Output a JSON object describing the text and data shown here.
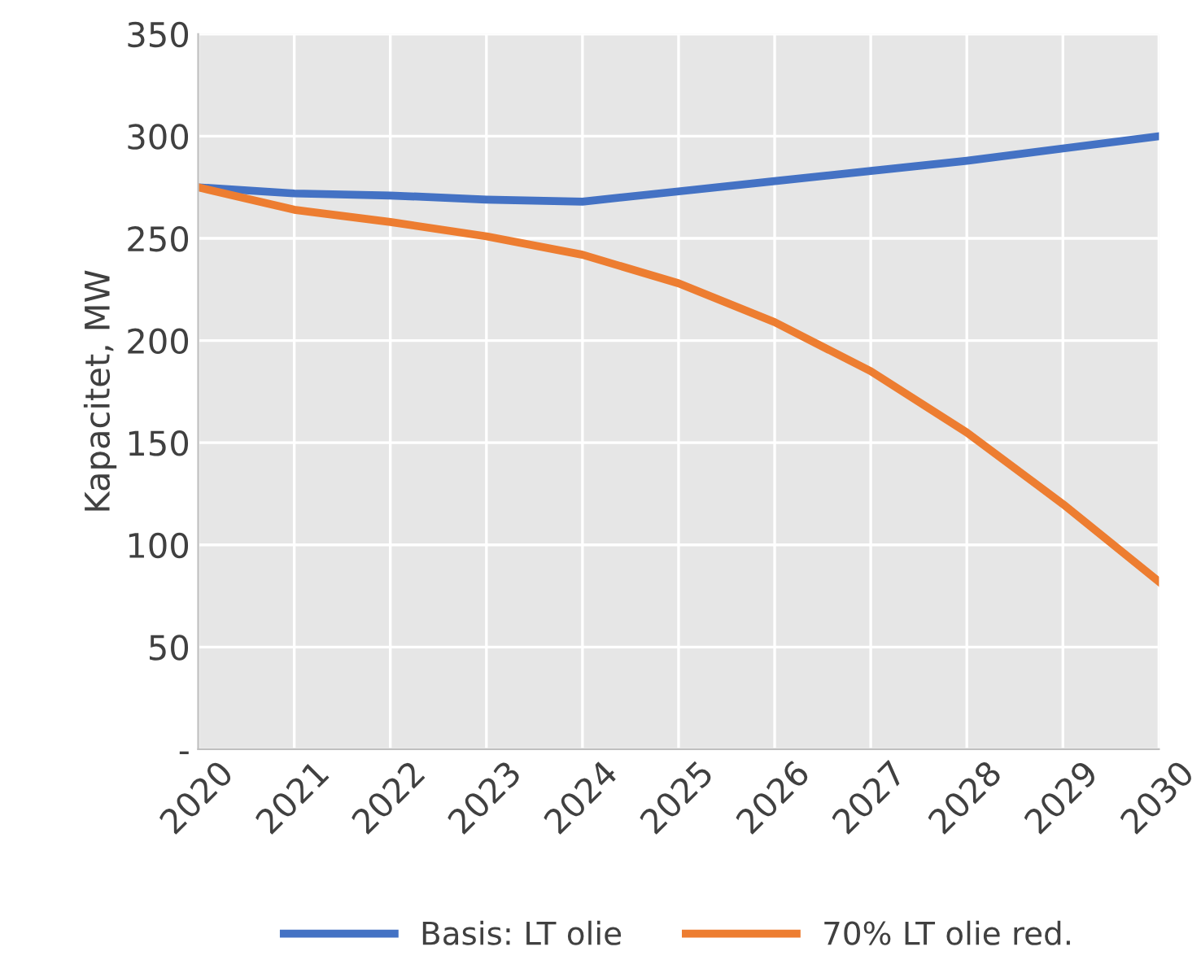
{
  "chart_data": {
    "type": "line",
    "ylabel": "Kapacitet, MW",
    "categories": [
      "2020",
      "2021",
      "2022",
      "2023",
      "2024",
      "2025",
      "2026",
      "2027",
      "2028",
      "2029",
      "2030"
    ],
    "series": [
      {
        "name": "Basis: LT olie",
        "color": "#4472c4",
        "values": [
          275,
          272,
          271,
          269,
          268,
          273,
          278,
          283,
          288,
          294,
          300
        ]
      },
      {
        "name": "70% LT olie red.",
        "color": "#ed7d31",
        "values": [
          275,
          264,
          258,
          251,
          242,
          228,
          209,
          185,
          155,
          120,
          82
        ]
      }
    ],
    "ylim": [
      0,
      350
    ],
    "yticks": [
      {
        "value": 0,
        "label": "-"
      },
      50,
      100,
      150,
      200,
      250,
      300,
      350
    ],
    "grid": true,
    "legend": "bottom",
    "marker": "none",
    "line_style": "solid"
  }
}
